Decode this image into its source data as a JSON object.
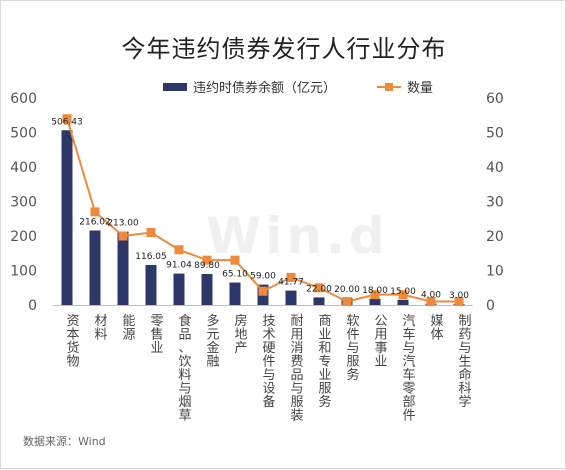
{
  "chart_data": {
    "type": "bar",
    "title": "今年违约债券发行人行业分布",
    "categories": [
      "资本货物",
      "材料",
      "能源",
      "零售业",
      "食品、饮料与烟草",
      "多元金融",
      "房地产",
      "技术硬件与设备",
      "耐用消费品与服装",
      "商业和专业服务",
      "软件与服务",
      "公用事业",
      "汽车与汽车零部件",
      "媒体",
      "制药与生命科学"
    ],
    "series": [
      {
        "name": "违约时债券余额（亿元）",
        "type": "bar",
        "axis": "left",
        "color": "#2d3768",
        "values": [
          506.43,
          216.02,
          213.0,
          116.05,
          91.04,
          89.8,
          65.1,
          59.0,
          41.77,
          22.0,
          20.0,
          18.0,
          15.0,
          4.0,
          3.0
        ],
        "labels": [
          "506.43",
          "216.02",
          "213.00",
          "116.05",
          "91.04",
          "89.80",
          "65.10",
          "59.00",
          "41.77",
          "22.00",
          "20.00",
          "18.00",
          "15.00",
          "4.00",
          "3.00"
        ]
      },
      {
        "name": "数量",
        "type": "line",
        "axis": "right",
        "color": "#ef8a3c",
        "values": [
          54,
          27,
          20,
          21,
          16,
          13,
          13,
          4,
          8,
          5,
          1,
          3,
          3,
          1,
          1
        ]
      }
    ],
    "y_left": {
      "min": 0,
      "max": 600,
      "ticks": [
        "0",
        "100",
        "200",
        "300",
        "400",
        "500",
        "600"
      ]
    },
    "y_right": {
      "min": 0,
      "max": 60,
      "ticks": [
        "0",
        "10",
        "20",
        "30",
        "40",
        "50",
        "60"
      ]
    },
    "grid": false,
    "legend": "top"
  },
  "source": "数据来源：Wind",
  "watermark": "Win.d"
}
